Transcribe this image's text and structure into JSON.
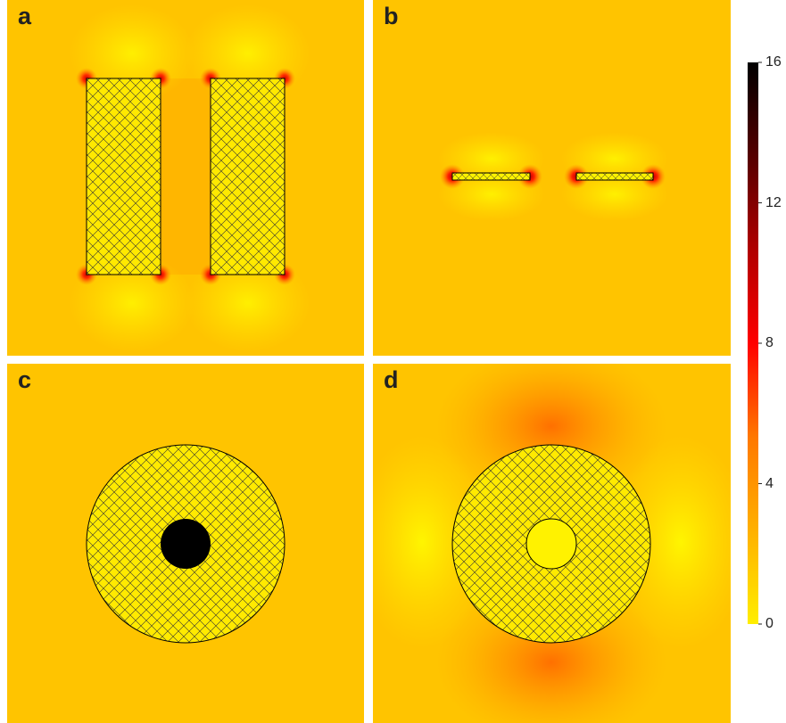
{
  "panels": {
    "a": {
      "label": "a"
    },
    "b": {
      "label": "b"
    },
    "c": {
      "label": "c"
    },
    "d": {
      "label": "d"
    }
  },
  "colorbar": {
    "colors": [
      "#ffee00",
      "#ffb000",
      "#ff7800",
      "#ff0000",
      "#b00000",
      "#550000",
      "#000000"
    ],
    "ticks": [
      {
        "label": "16",
        "value": 16
      },
      {
        "label": "12",
        "value": 12
      },
      {
        "label": "8",
        "value": 8
      },
      {
        "label": "4",
        "value": 4
      },
      {
        "label": "0",
        "value": 0
      }
    ],
    "min": 0,
    "max": 16
  },
  "palette": {
    "background_field": "#ffc400",
    "hatch_fill": "#ffe900",
    "outline": "#000000"
  }
}
